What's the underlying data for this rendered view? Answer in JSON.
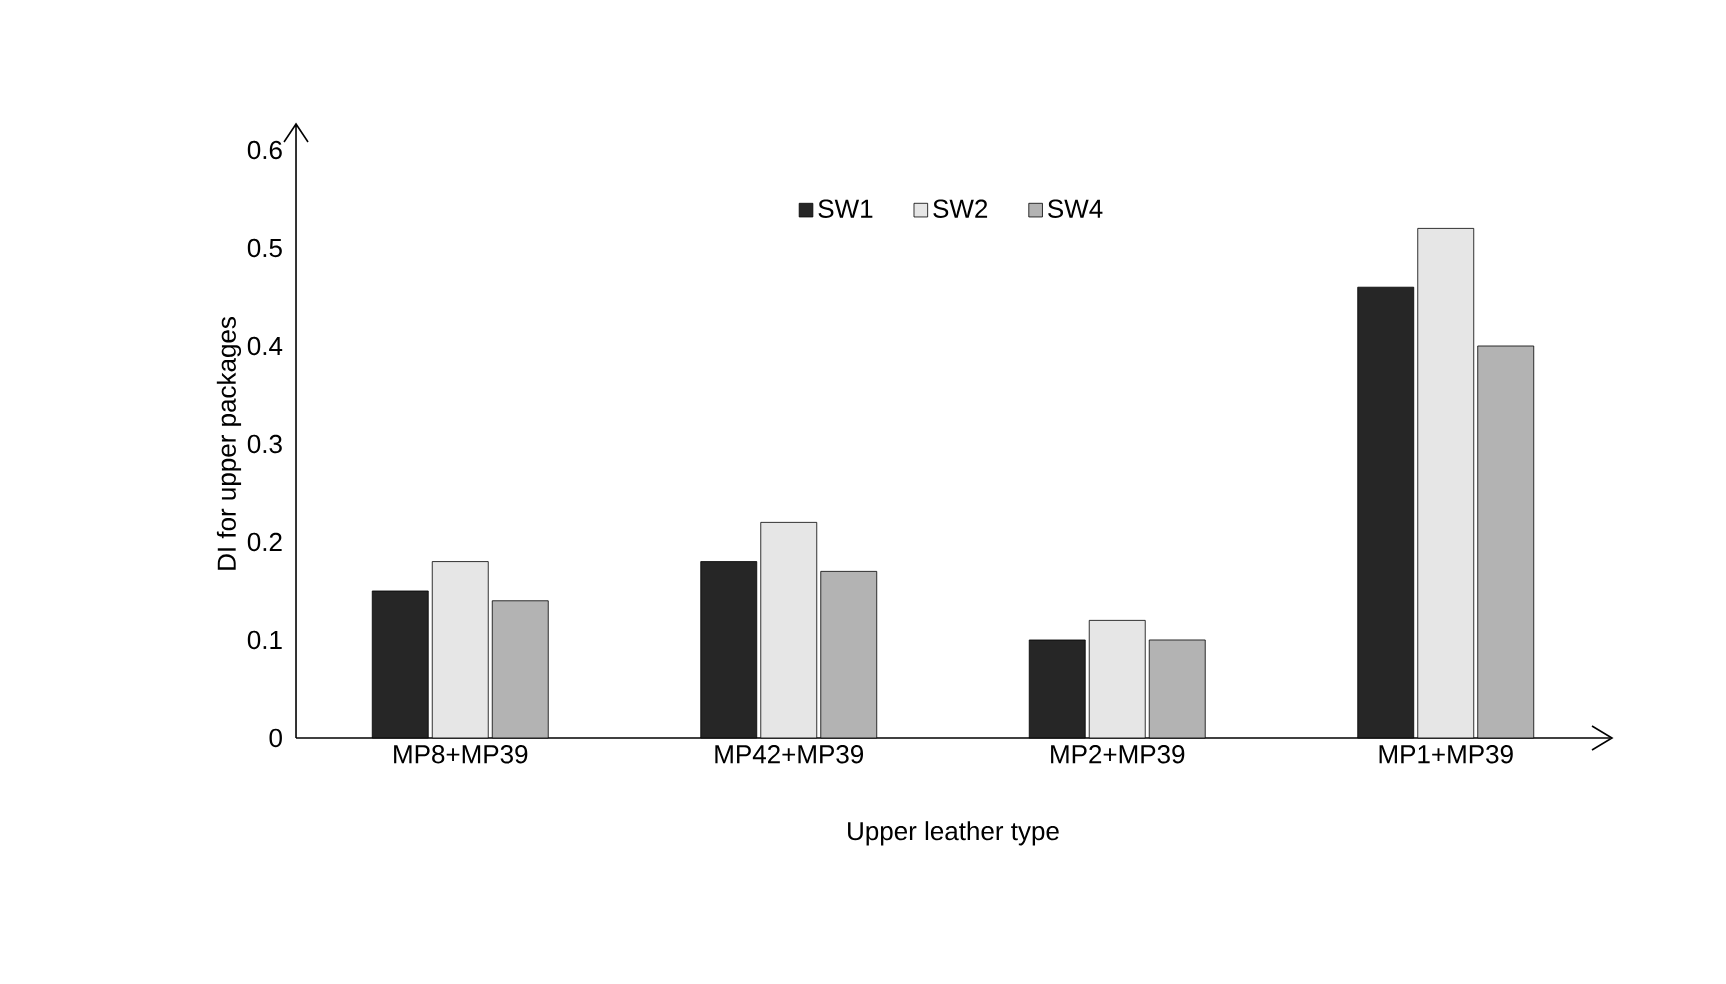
{
  "chart_data": {
    "type": "bar",
    "xlabel": "Upper leather type",
    "ylabel": "DI for upper packages",
    "categories": [
      "MP8+MP39",
      "MP42+MP39",
      "MP2+MP39",
      "MP1+MP39"
    ],
    "series": [
      {
        "name": "SW1",
        "color": "#262626",
        "values": [
          0.15,
          0.18,
          0.1,
          0.46
        ]
      },
      {
        "name": "SW2",
        "color": "#e6e6e6",
        "values": [
          0.18,
          0.22,
          0.12,
          0.52
        ]
      },
      {
        "name": "SW4",
        "color": "#b3b3b3",
        "values": [
          0.14,
          0.17,
          0.1,
          0.4
        ]
      }
    ],
    "ylim": [
      0,
      0.6
    ],
    "yticks": [
      0,
      0.1,
      0.2,
      0.3,
      0.4,
      0.5,
      0.6
    ],
    "grid": false,
    "legend": "top"
  }
}
